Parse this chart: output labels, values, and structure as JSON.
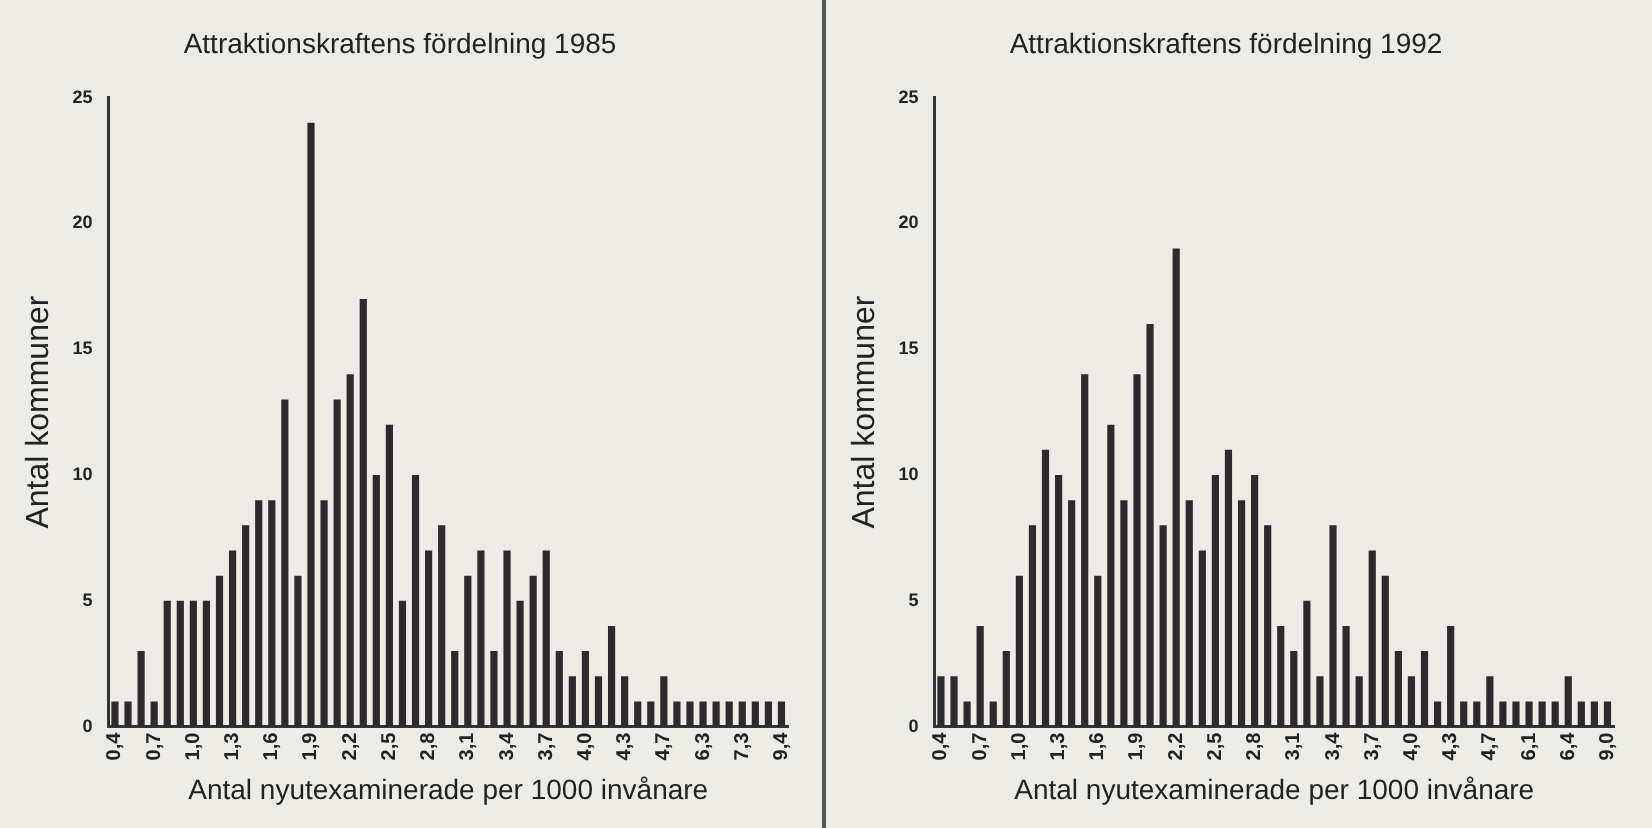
{
  "chart_data": [
    {
      "type": "bar",
      "title": "Attraktionskraftens fördelning 1985",
      "xlabel": "Antal nyutexaminerade per 1000 invånare",
      "ylabel": "Antal kommuner",
      "categories": [
        "0,4",
        null,
        null,
        "0,7",
        null,
        null,
        "1,0",
        null,
        null,
        "1,3",
        null,
        null,
        "1,6",
        null,
        null,
        "1,9",
        null,
        null,
        "2,2",
        null,
        null,
        "2,5",
        null,
        null,
        "2,8",
        null,
        null,
        "3,1",
        null,
        null,
        "3,4",
        null,
        null,
        "3,7",
        null,
        null,
        "4,0",
        null,
        null,
        "4,3",
        null,
        null,
        "4,7",
        null,
        null,
        "6,3",
        null,
        null,
        "7,3",
        null,
        null,
        "9,4"
      ],
      "values": [
        1,
        1,
        3,
        1,
        5,
        5,
        5,
        5,
        6,
        7,
        8,
        9,
        9,
        13,
        6,
        24,
        9,
        13,
        14,
        17,
        10,
        12,
        5,
        10,
        7,
        8,
        3,
        6,
        7,
        3,
        7,
        5,
        6,
        7,
        3,
        2,
        3,
        2,
        4,
        2,
        1,
        1,
        2,
        1,
        1,
        1,
        1,
        1,
        1,
        1,
        1,
        1
      ],
      "color": "#2e2a2c",
      "ylim": [
        0,
        25
      ],
      "yticks": [
        0,
        5,
        10,
        15,
        20,
        25
      ],
      "grid": false
    },
    {
      "type": "bar",
      "title": "Attraktionskraftens fördelning 1992",
      "xlabel": "Antal nyutexaminerade per 1000 invånare",
      "ylabel": "Antal kommuner",
      "categories": [
        "0,4",
        null,
        null,
        "0,7",
        null,
        null,
        "1,0",
        null,
        null,
        "1,3",
        null,
        null,
        "1,6",
        null,
        null,
        "1,9",
        null,
        null,
        "2,2",
        null,
        null,
        "2,5",
        null,
        null,
        "2,8",
        null,
        null,
        "3,1",
        null,
        null,
        "3,4",
        null,
        null,
        "3,7",
        null,
        null,
        "4,0",
        null,
        null,
        "4,3",
        null,
        null,
        "4,7",
        null,
        null,
        "6,1",
        null,
        null,
        "6,4",
        null,
        null,
        "9,0"
      ],
      "values": [
        2,
        2,
        1,
        4,
        1,
        3,
        6,
        8,
        11,
        10,
        9,
        14,
        6,
        12,
        9,
        14,
        16,
        8,
        19,
        9,
        7,
        10,
        11,
        9,
        10,
        8,
        4,
        3,
        5,
        2,
        8,
        4,
        2,
        7,
        6,
        3,
        2,
        3,
        1,
        4,
        1,
        1,
        2,
        1,
        1,
        1,
        1,
        1,
        2,
        1,
        1,
        1
      ],
      "color": "#2e2a2c",
      "ylim": [
        0,
        25
      ],
      "yticks": [
        0,
        5,
        10,
        15,
        20,
        25
      ],
      "grid": false
    }
  ]
}
